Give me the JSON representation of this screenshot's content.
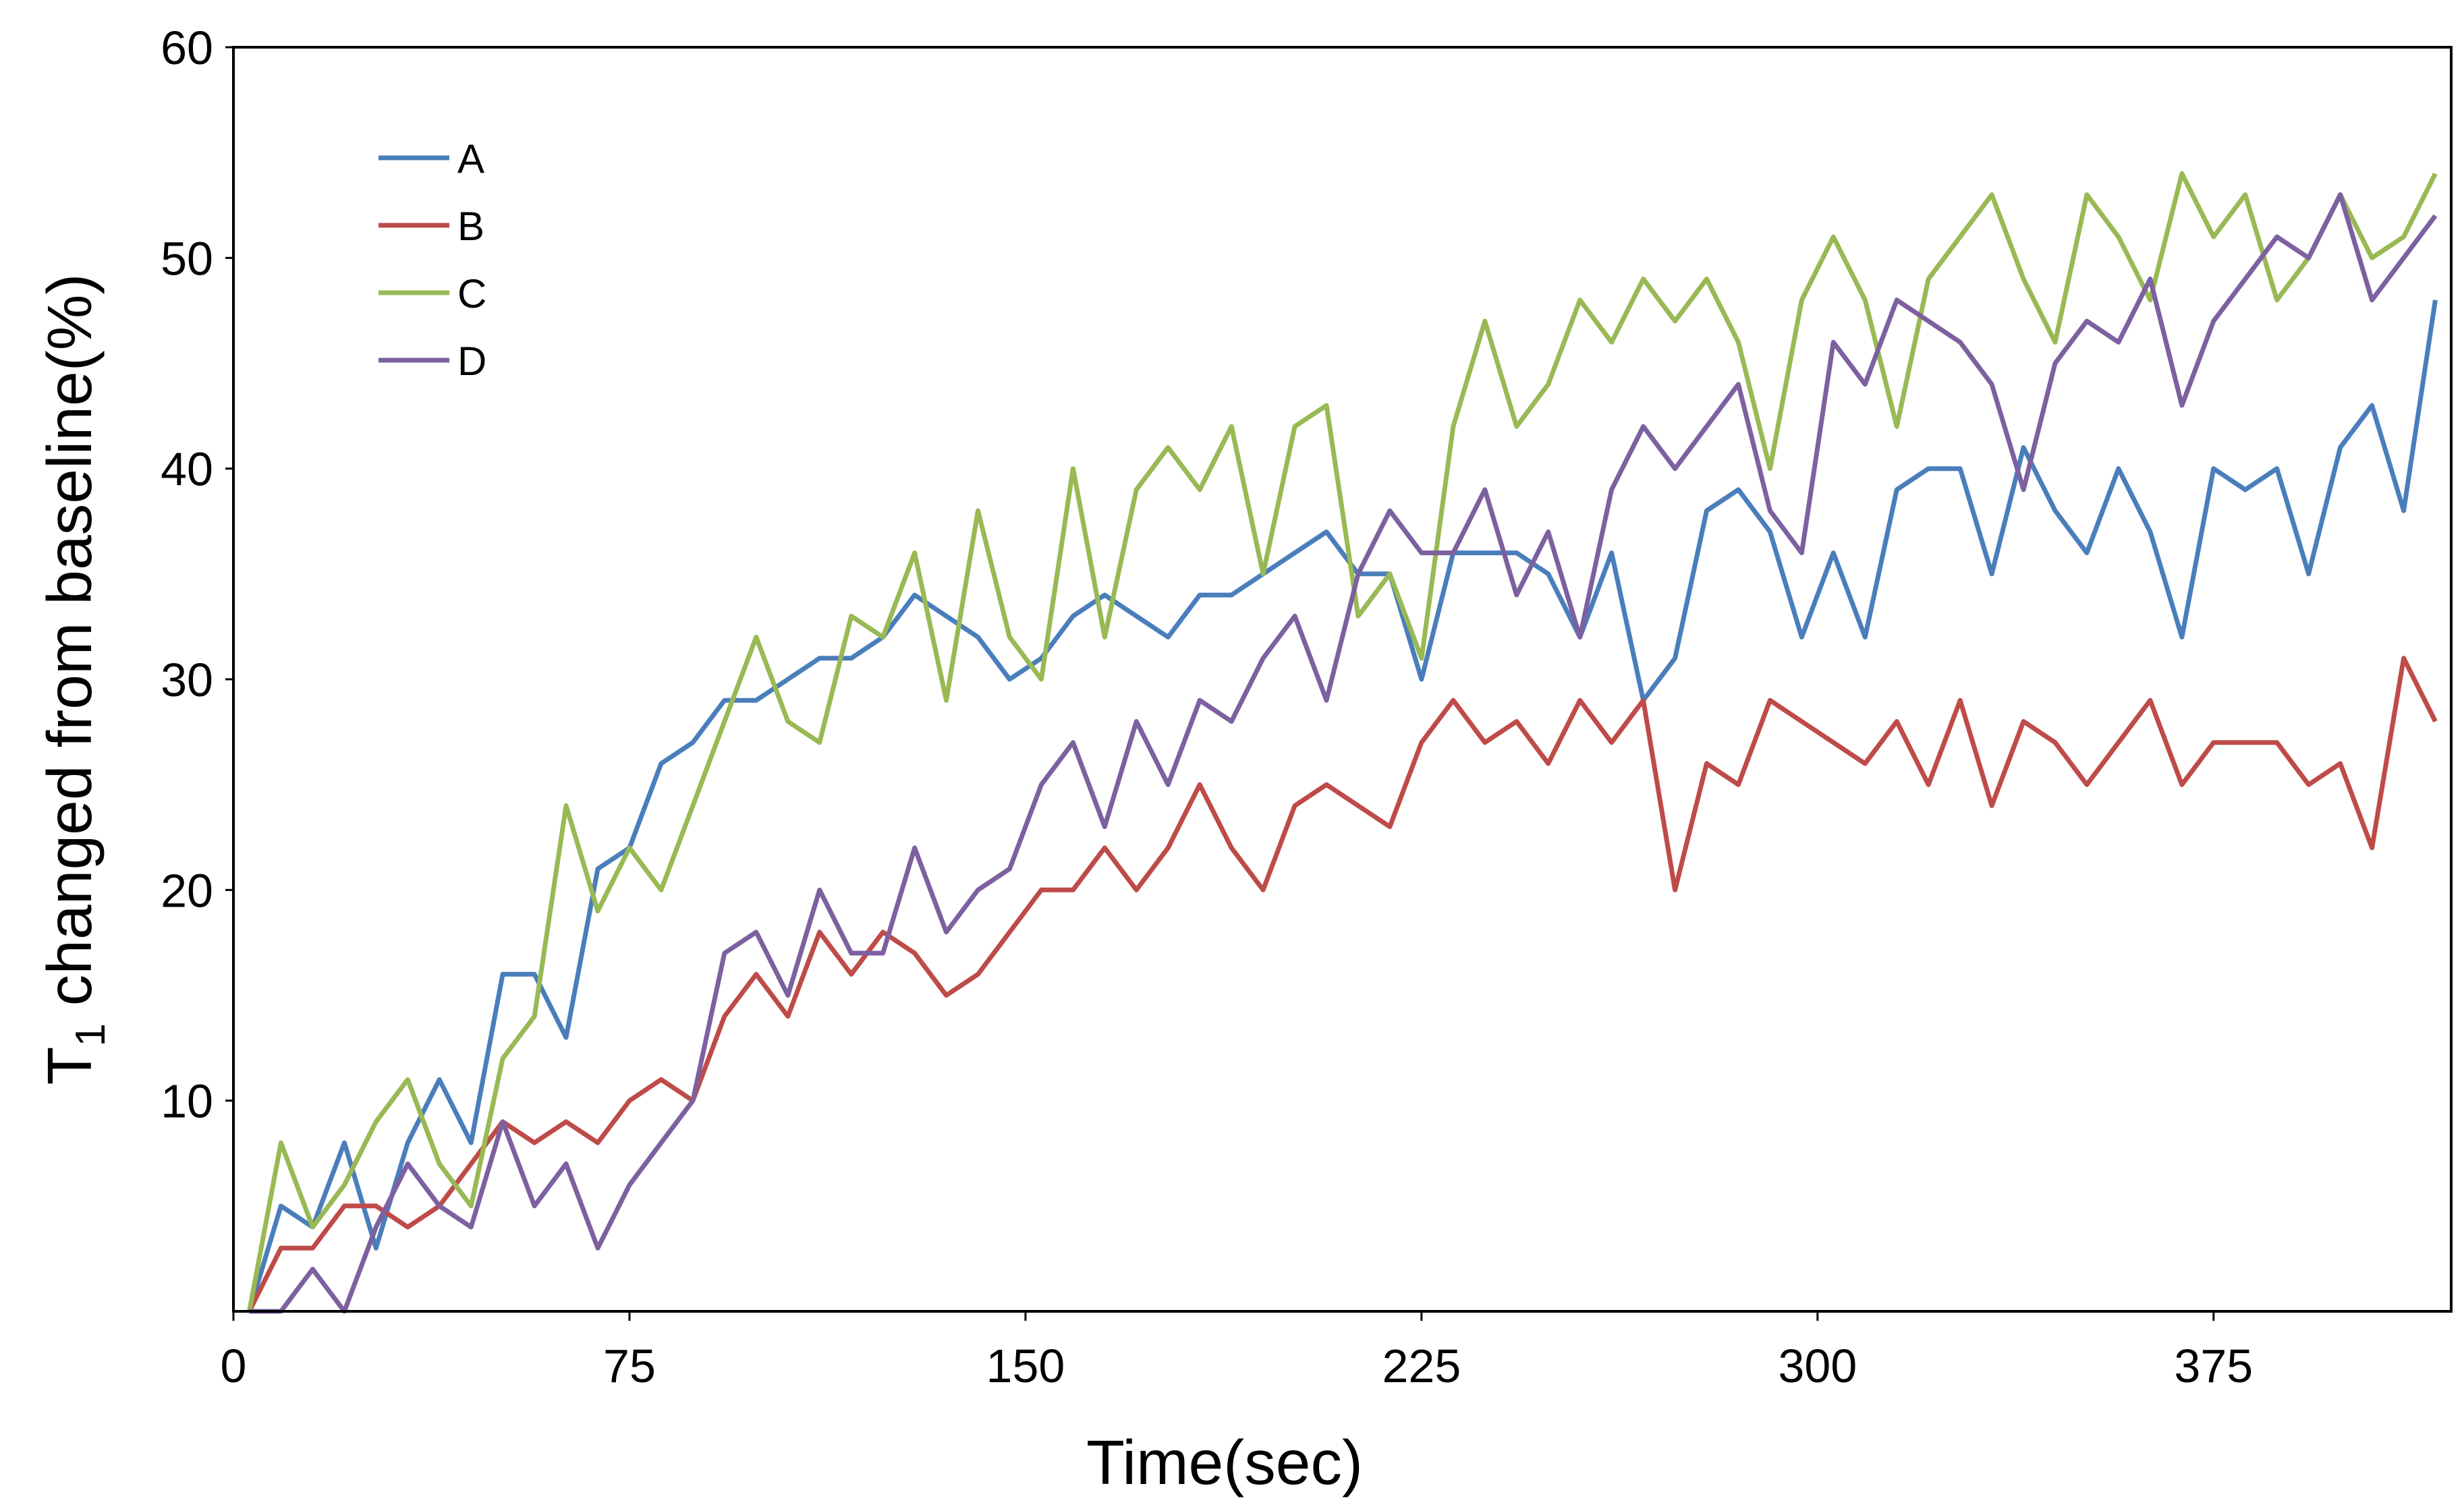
{
  "chart_data": {
    "type": "line",
    "y_label": [
      "T",
      "1",
      " changed from baseline(%)"
    ],
    "x_label": "Time(sec)",
    "x": [
      3,
      9,
      15,
      21,
      27,
      33,
      39,
      45,
      51,
      57,
      63,
      69,
      75,
      81,
      87,
      93,
      99,
      105,
      111,
      117,
      123,
      129,
      135,
      141,
      147,
      153,
      159,
      165,
      171,
      177,
      183,
      189,
      195,
      201,
      207,
      213,
      219,
      225,
      231,
      237,
      243,
      249,
      255,
      261,
      267,
      273,
      279,
      285,
      291,
      297,
      303,
      309,
      315,
      321,
      327,
      333,
      339,
      345,
      351,
      357,
      363,
      369,
      375,
      381,
      387,
      393,
      399,
      405,
      411,
      417
    ],
    "series": [
      {
        "name": "A",
        "color": "#4a7ebb",
        "values": [
          0,
          5,
          4,
          8,
          3,
          8,
          11,
          8,
          16,
          16,
          13,
          21,
          22,
          26,
          27,
          29,
          29,
          30,
          31,
          31,
          32,
          34,
          33,
          32,
          30,
          31,
          33,
          34,
          33,
          32,
          34,
          34,
          35,
          36,
          37,
          35,
          35,
          30,
          36,
          36,
          36,
          35,
          32,
          36,
          29,
          31,
          38,
          39,
          37,
          32,
          36,
          32,
          39,
          40,
          40,
          35,
          41,
          38,
          36,
          40,
          37,
          32,
          40,
          39,
          40,
          35,
          41,
          43,
          38,
          48
        ]
      },
      {
        "name": "B",
        "color": "#be4b48",
        "values": [
          0,
          3,
          3,
          5,
          5,
          4,
          5,
          7,
          9,
          8,
          9,
          8,
          10,
          11,
          10,
          14,
          16,
          14,
          18,
          16,
          18,
          17,
          15,
          16,
          18,
          20,
          20,
          22,
          20,
          22,
          25,
          22,
          20,
          24,
          25,
          24,
          23,
          27,
          29,
          27,
          28,
          26,
          29,
          27,
          29,
          20,
          26,
          25,
          29,
          28,
          27,
          26,
          28,
          25,
          29,
          24,
          28,
          27,
          25,
          27,
          29,
          25,
          27,
          27,
          27,
          25,
          26,
          22,
          31,
          28
        ]
      },
      {
        "name": "C",
        "color": "#98b954",
        "values": [
          0,
          8,
          4,
          6,
          9,
          11,
          7,
          5,
          12,
          14,
          24,
          19,
          22,
          20,
          24,
          28,
          32,
          28,
          27,
          33,
          32,
          36,
          29,
          38,
          32,
          30,
          40,
          32,
          39,
          41,
          39,
          42,
          35,
          42,
          43,
          33,
          35,
          31,
          42,
          47,
          42,
          44,
          48,
          46,
          49,
          47,
          49,
          46,
          40,
          48,
          51,
          48,
          42,
          49,
          51,
          53,
          49,
          46,
          53,
          51,
          48,
          54,
          51,
          53,
          48,
          50,
          53,
          50,
          51,
          54
        ]
      },
      {
        "name": "D",
        "color": "#7d60a0",
        "values": [
          0,
          0,
          2,
          0,
          4,
          7,
          5,
          4,
          9,
          5,
          7,
          3,
          6,
          8,
          10,
          17,
          18,
          15,
          20,
          17,
          17,
          22,
          18,
          20,
          21,
          25,
          27,
          23,
          28,
          25,
          29,
          28,
          31,
          33,
          29,
          35,
          38,
          36,
          36,
          39,
          34,
          37,
          32,
          39,
          42,
          40,
          42,
          44,
          38,
          36,
          46,
          44,
          48,
          47,
          46,
          44,
          39,
          45,
          47,
          46,
          49,
          43,
          47,
          49,
          51,
          50,
          53,
          48,
          50,
          52
        ]
      }
    ],
    "xlim": [
      0,
      420
    ],
    "ylim": [
      0,
      60
    ],
    "xticks": [
      0,
      75,
      150,
      225,
      300,
      375
    ],
    "yticks": [
      10,
      20,
      30,
      40,
      50,
      60
    ],
    "legend": "upper-left"
  }
}
